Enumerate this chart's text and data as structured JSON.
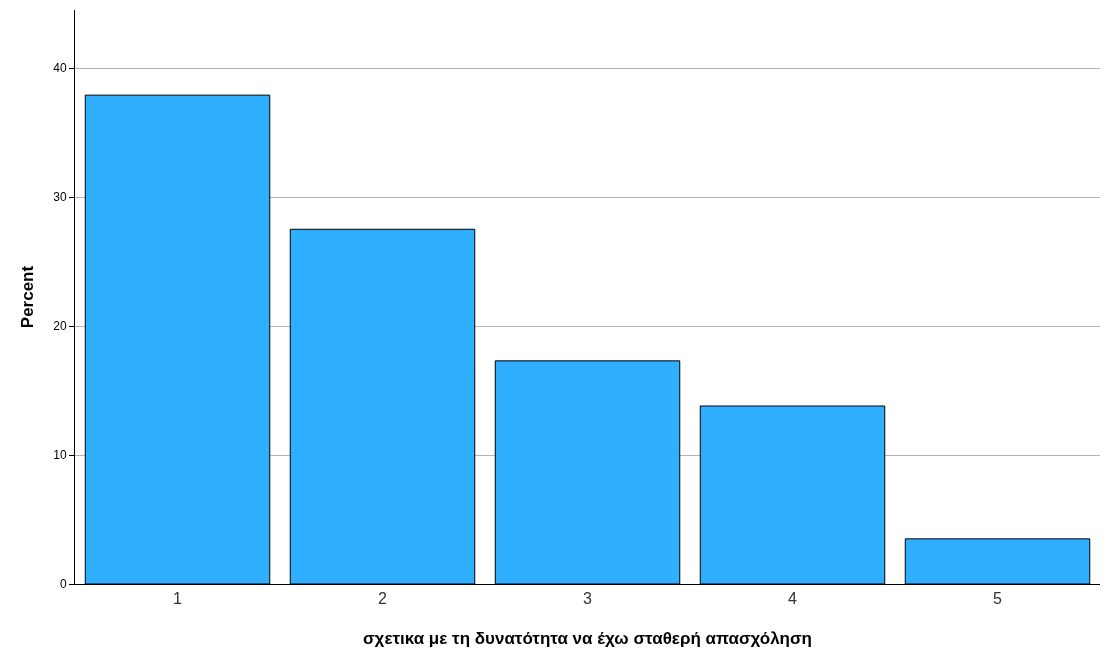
{
  "chart_data": {
    "type": "bar",
    "xlabel": "σχετικα με τη δυνατότητα να έχω σταθερή απασχόληση",
    "ylabel": "Percent",
    "categories": [
      "1",
      "2",
      "3",
      "4",
      "5"
    ],
    "values": [
      37.9,
      27.5,
      17.3,
      13.8,
      3.5
    ],
    "color": "#30aeff",
    "ylim": [
      0,
      44.5
    ],
    "yticks": [
      0,
      10,
      20,
      30,
      40
    ],
    "grid": "y",
    "legend": false
  }
}
